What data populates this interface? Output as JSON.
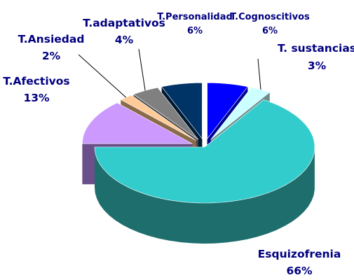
{
  "chart_data": {
    "type": "pie",
    "style": "3d-exploded",
    "slices": [
      {
        "key": "cog",
        "label": "T.Cognoscitivos",
        "pct_text": "6%",
        "value": 6,
        "color": "#0000ff",
        "side_color": "#00008f"
      },
      {
        "key": "sus",
        "label": "T. sustancias",
        "pct_text": "3%",
        "value": 3,
        "color": "#ccffff",
        "side_color": "#6a8e8e"
      },
      {
        "key": "esq",
        "label": "Esquizofrenia",
        "pct_text": "66%",
        "value": 66,
        "color": "#33cccc",
        "side_color": "#1f6e6e"
      },
      {
        "key": "afe",
        "label": "T.Afectivos",
        "pct_text": "13%",
        "value": 13,
        "color": "#cc99ff",
        "side_color": "#6a4f8a"
      },
      {
        "key": "ans",
        "label": "T.Ansiedad",
        "pct_text": "2%",
        "value": 2,
        "color": "#ffcc99",
        "side_color": "#8a6b4b"
      },
      {
        "key": "ada",
        "label": "T.adaptativos",
        "pct_text": "4%",
        "value": 4,
        "color": "#808080",
        "side_color": "#4a4a4a"
      },
      {
        "key": "per",
        "label": "T.Personalidad",
        "pct_text": "6%",
        "value": 6,
        "color": "#003366",
        "side_color": "#001a33"
      }
    ],
    "label_color": "#000080"
  }
}
